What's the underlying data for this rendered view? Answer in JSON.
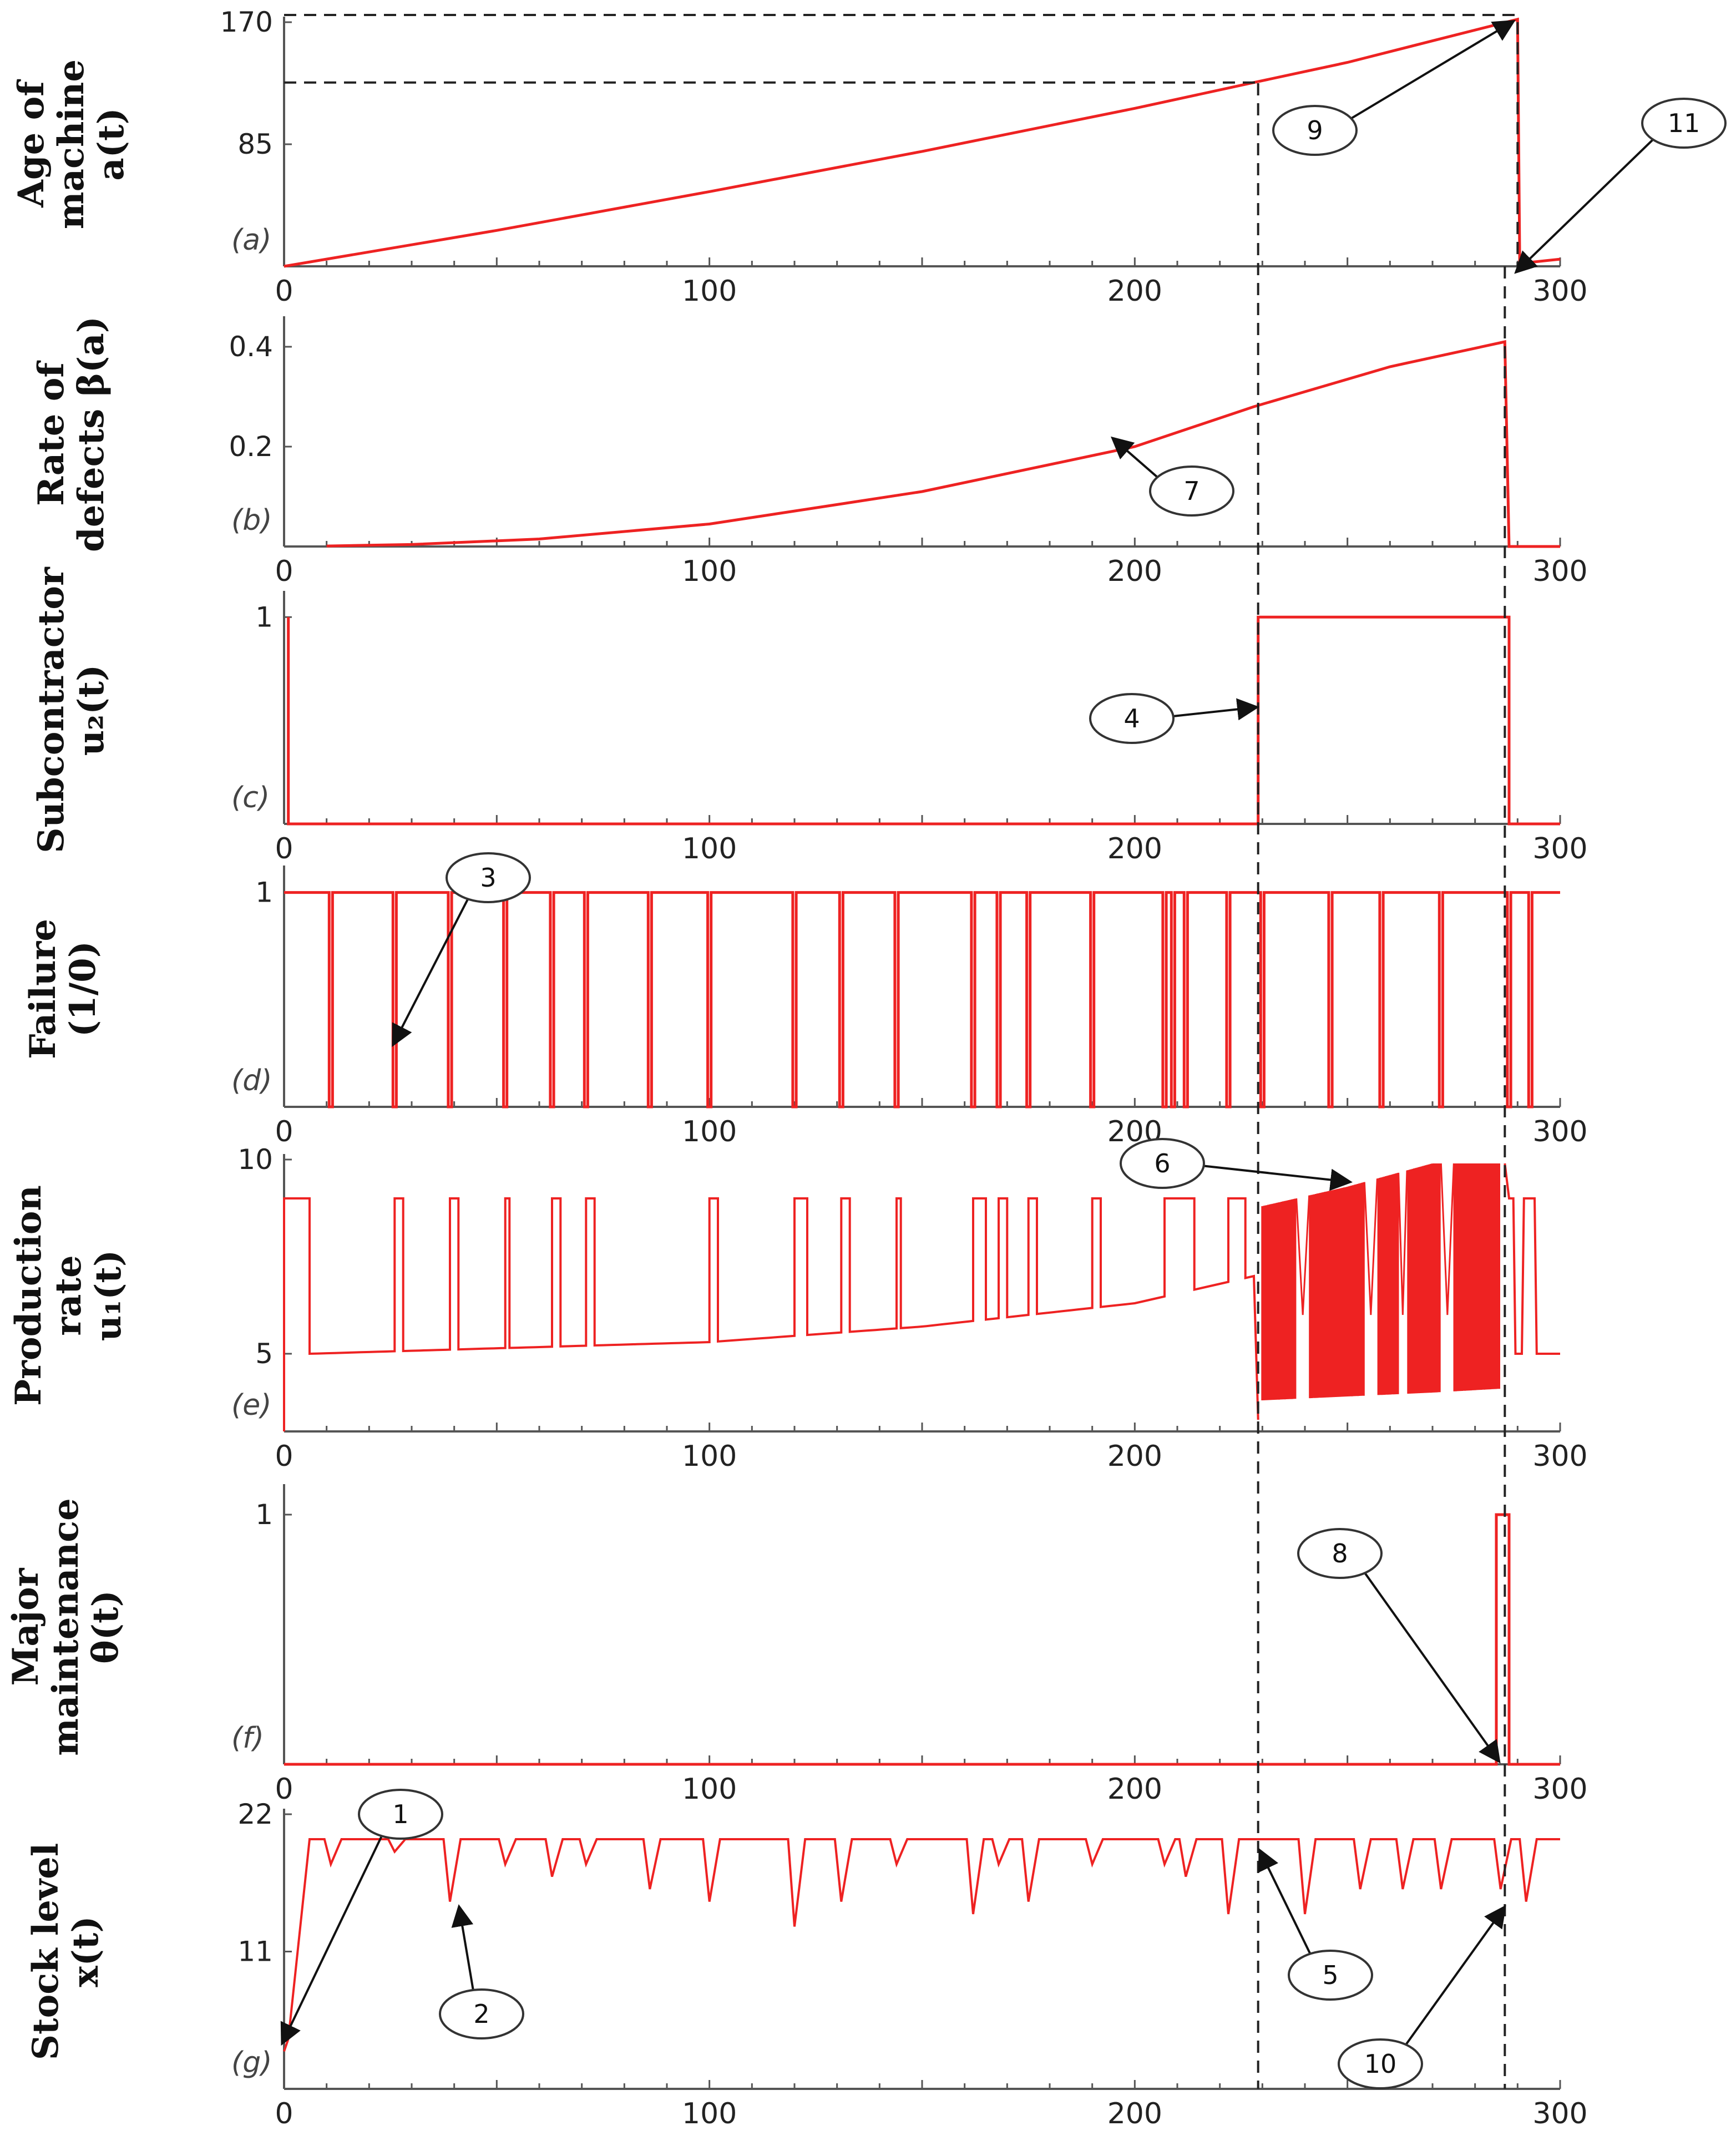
{
  "chart_data": [
    {
      "type": "line",
      "panel": "(a)",
      "ylabel_lines": [
        "Age of",
        "machine",
        "a(t)"
      ],
      "xlim": [
        0,
        300
      ],
      "ylim": [
        0,
        170
      ],
      "yticks": [
        {
          "value": 170,
          "label": "170"
        },
        {
          "value": 85,
          "label": "85"
        }
      ],
      "xticks": [
        {
          "value": 0,
          "label": "0"
        },
        {
          "value": 100,
          "label": "100"
        },
        {
          "value": 200,
          "label": "200"
        },
        {
          "value": 300,
          "label": "300"
        }
      ],
      "series": [
        {
          "x": [
            0,
            50,
            100,
            150,
            200,
            228,
            250,
            270,
            290,
            290.5,
            300
          ],
          "y": [
            0,
            25,
            52,
            80,
            110,
            128,
            142,
            157,
            172,
            2,
            5
          ]
        }
      ],
      "guides": [
        {
          "orient": "h",
          "value": 175,
          "from": 0,
          "to": 290
        },
        {
          "orient": "h",
          "value": 128,
          "from": 0,
          "to": 229
        }
      ]
    },
    {
      "type": "line",
      "panel": "(b)",
      "ylabel_lines": [
        "Rate of",
        "defects β(a)"
      ],
      "xlim": [
        0,
        300
      ],
      "ylim": [
        0,
        0.45
      ],
      "yticks": [
        {
          "value": 0.4,
          "label": "0.4"
        },
        {
          "value": 0.2,
          "label": "0.2"
        }
      ],
      "xticks": [
        {
          "value": 0,
          "label": "0"
        },
        {
          "value": 100,
          "label": "100"
        },
        {
          "value": 200,
          "label": "200"
        },
        {
          "value": 300,
          "label": "300"
        }
      ],
      "series": [
        {
          "x": [
            10,
            30,
            60,
            100,
            150,
            200,
            228,
            260,
            287,
            288,
            300
          ],
          "y": [
            0.001,
            0.004,
            0.015,
            0.045,
            0.11,
            0.2,
            0.28,
            0.36,
            0.41,
            0.0,
            0.0
          ]
        }
      ]
    },
    {
      "type": "line",
      "panel": "(c)",
      "ylabel_lines": [
        "Subcontractor",
        "u₂(t)"
      ],
      "xlim": [
        0,
        300
      ],
      "ylim": [
        0,
        1.1
      ],
      "yticks": [
        {
          "value": 1,
          "label": "1"
        }
      ],
      "xticks": [
        {
          "value": 0,
          "label": "0"
        },
        {
          "value": 100,
          "label": "100"
        },
        {
          "value": 200,
          "label": "200"
        },
        {
          "value": 300,
          "label": "300"
        }
      ],
      "series": [
        {
          "x": [
            1,
            1,
            228,
            229,
            229,
            288,
            288,
            300
          ],
          "y": [
            1,
            0,
            0,
            0,
            1,
            1,
            0,
            0
          ]
        }
      ]
    },
    {
      "type": "line",
      "panel": "(d)",
      "ylabel_lines": [
        "Failure",
        "(1/0)"
      ],
      "xlim": [
        0,
        300
      ],
      "ylim": [
        0,
        1.1
      ],
      "yticks": [
        {
          "value": 1,
          "label": "1"
        }
      ],
      "xticks": [
        {
          "value": 0,
          "label": "0"
        },
        {
          "value": 100,
          "label": "100"
        },
        {
          "value": 200,
          "label": "200"
        },
        {
          "value": 300,
          "label": "300"
        }
      ],
      "failure_times": [
        11,
        26,
        39,
        52,
        63,
        71,
        86,
        100,
        120,
        131,
        144,
        162,
        168,
        175,
        190,
        207,
        209,
        212,
        222,
        230,
        246,
        258,
        272,
        288,
        293
      ],
      "series": [
        {
          "name": "",
          "x": [],
          "y": []
        }
      ]
    },
    {
      "type": "line",
      "panel": "(e)",
      "ylabel_lines": [
        "Production",
        "rate",
        "u₁(t)"
      ],
      "xlim": [
        0,
        300
      ],
      "ylim": [
        3,
        10
      ],
      "yticks": [
        {
          "value": 10,
          "label": "10"
        },
        {
          "value": 5,
          "label": "5"
        }
      ],
      "xticks": [
        {
          "value": 0,
          "label": "0"
        },
        {
          "value": 100,
          "label": "100"
        },
        {
          "value": 200,
          "label": "200"
        },
        {
          "value": 300,
          "label": "300"
        }
      ],
      "base_curve": {
        "x": [
          6,
          100,
          150,
          200,
          228
        ],
        "y": [
          5.0,
          5.3,
          5.7,
          6.3,
          7.0
        ]
      },
      "high_value": 9,
      "high_intervals": [
        [
          0,
          6
        ],
        [
          26,
          28
        ],
        [
          39,
          41
        ],
        [
          52,
          53
        ],
        [
          63,
          65
        ],
        [
          71,
          73
        ],
        [
          100,
          102
        ],
        [
          120,
          123
        ],
        [
          131,
          133
        ],
        [
          144,
          145
        ],
        [
          162,
          165
        ],
        [
          168,
          170
        ],
        [
          175,
          177
        ],
        [
          190,
          192
        ],
        [
          207,
          214
        ],
        [
          222,
          226
        ]
      ],
      "dense_region": {
        "x": [
          230,
          250,
          270,
          286
        ],
        "upper": [
          8.8,
          9.3,
          9.9,
          9.9
        ],
        "lower": [
          3.8,
          3.9,
          4.0,
          4.1
        ],
        "gaps": [
          [
            238,
            241
          ],
          [
            254,
            257
          ],
          [
            262,
            264
          ],
          [
            272,
            275
          ]
        ]
      },
      "tail": {
        "x": [
          288,
          290,
          292,
          295,
          300
        ],
        "y": [
          9,
          5,
          9,
          5,
          5
        ]
      },
      "series": [
        {
          "name": "",
          "x": [],
          "y": []
        }
      ]
    },
    {
      "type": "line",
      "panel": "(f)",
      "ylabel_lines": [
        "Major",
        "maintenance",
        "θ(t)"
      ],
      "xlim": [
        0,
        300
      ],
      "ylim": [
        0,
        1.1
      ],
      "yticks": [
        {
          "value": 1,
          "label": "1"
        }
      ],
      "xticks": [
        {
          "value": 0,
          "label": "0"
        },
        {
          "value": 100,
          "label": "100"
        },
        {
          "value": 200,
          "label": "200"
        },
        {
          "value": 300,
          "label": "300"
        }
      ],
      "series": [
        {
          "x": [
            0,
            285,
            285,
            288,
            288,
            300
          ],
          "y": [
            0,
            0,
            1,
            1,
            0,
            0
          ]
        }
      ]
    },
    {
      "type": "line",
      "panel": "(g)",
      "ylabel_lines": [
        "Stock level",
        "x(t)"
      ],
      "xlim": [
        0,
        300
      ],
      "ylim": [
        0,
        22
      ],
      "yticks": [
        {
          "value": 22,
          "label": "22"
        },
        {
          "value": 11,
          "label": "11"
        }
      ],
      "xticks": [
        {
          "value": 0,
          "label": "0"
        },
        {
          "value": 100,
          "label": "100"
        },
        {
          "value": 200,
          "label": "200"
        },
        {
          "value": 300,
          "label": "300"
        }
      ],
      "initial": {
        "x": [
          0,
          1,
          6
        ],
        "y": [
          3,
          4,
          20
        ]
      },
      "plateau": 20,
      "dips": [
        [
          11,
          18
        ],
        [
          26,
          19
        ],
        [
          39,
          15
        ],
        [
          52,
          18
        ],
        [
          63,
          17
        ],
        [
          71,
          18
        ],
        [
          86,
          16
        ],
        [
          100,
          15
        ],
        [
          120,
          13
        ],
        [
          131,
          15
        ],
        [
          144,
          18
        ],
        [
          162,
          14
        ],
        [
          168,
          18
        ],
        [
          175,
          15
        ],
        [
          190,
          18
        ],
        [
          207,
          18
        ],
        [
          212,
          17
        ],
        [
          222,
          14
        ],
        [
          240,
          14
        ],
        [
          253,
          16
        ],
        [
          263,
          16
        ],
        [
          272,
          16
        ],
        [
          286,
          16
        ],
        [
          292,
          15
        ]
      ],
      "series": [
        {
          "name": "",
          "x": [],
          "y": []
        }
      ]
    }
  ],
  "vlines": [
    229,
    290,
    287
  ],
  "callouts": [
    {
      "label": "1"
    },
    {
      "label": "2"
    },
    {
      "label": "3"
    },
    {
      "label": "4"
    },
    {
      "label": "5"
    },
    {
      "label": "6"
    },
    {
      "label": "7"
    },
    {
      "label": "8"
    },
    {
      "label": "9"
    },
    {
      "label": "10"
    },
    {
      "label": "11"
    }
  ],
  "colors": {
    "series": "#ee2222",
    "axis": "#555555",
    "guide": "#222222",
    "callout_border": "#333333"
  }
}
